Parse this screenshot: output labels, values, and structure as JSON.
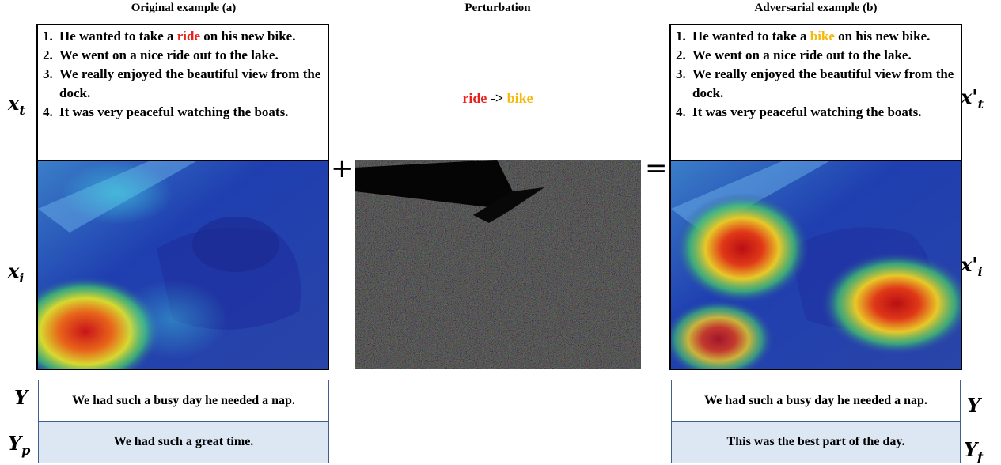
{
  "titles": {
    "original": "Original example (a)",
    "perturbation": "Perturbation",
    "adversarial": "Adversarial example (b)"
  },
  "original": {
    "story": [
      {
        "num": "1.",
        "parts": [
          {
            "t": "He wanted to take a ",
            "c": ""
          },
          {
            "t": "ride",
            "c": "red"
          },
          {
            "t": " on his new bike.",
            "c": ""
          }
        ]
      },
      {
        "num": "2.",
        "parts": [
          {
            "t": "We went on a nice ride out to the lake.",
            "c": ""
          }
        ]
      },
      {
        "num": "3.",
        "parts": [
          {
            "t": "We really enjoyed the beautiful view from the dock.",
            "c": ""
          }
        ]
      },
      {
        "num": "4.",
        "parts": [
          {
            "t": "It was very peaceful watching the boats.",
            "c": ""
          }
        ]
      }
    ],
    "caption_gt": "We had such a busy day he needed a nap.",
    "caption_pred": "We had such a great time."
  },
  "adversarial": {
    "story": [
      {
        "num": "1.",
        "parts": [
          {
            "t": "He wanted to take a ",
            "c": ""
          },
          {
            "t": "bike",
            "c": "orange"
          },
          {
            "t": " on his new bike.",
            "c": ""
          }
        ]
      },
      {
        "num": "2.",
        "parts": [
          {
            "t": "We went on a nice ride out to the lake.",
            "c": ""
          }
        ]
      },
      {
        "num": "3.",
        "parts": [
          {
            "t": "We really enjoyed the beautiful view from the dock.",
            "c": ""
          }
        ]
      },
      {
        "num": "4.",
        "parts": [
          {
            "t": "It was very peaceful watching the boats.",
            "c": ""
          }
        ]
      }
    ],
    "caption_gt": "We had such a busy day he needed a nap.",
    "caption_pred": "This was the best part of the day."
  },
  "perturbation": {
    "from": "ride",
    "arrow": "->",
    "to": "bike"
  },
  "operators": {
    "plus": "+",
    "equals": "="
  },
  "labels": {
    "xt": "x",
    "xt_sub": "t",
    "xi": "x",
    "xi_sub": "i",
    "xt_adv": "x'",
    "xt_adv_sub": "t",
    "xi_adv": "x'",
    "xi_adv_sub": "i",
    "y": "Y",
    "yp": "Y",
    "yp_sub": "p",
    "y_adv": "Y",
    "yf": "Y",
    "yf_sub": "f"
  },
  "colors": {
    "highlight_red": "#e8211c",
    "highlight_orange": "#f5b90a",
    "caption_fill": "#dde7f4",
    "caption_border": "#3f5f8c"
  }
}
